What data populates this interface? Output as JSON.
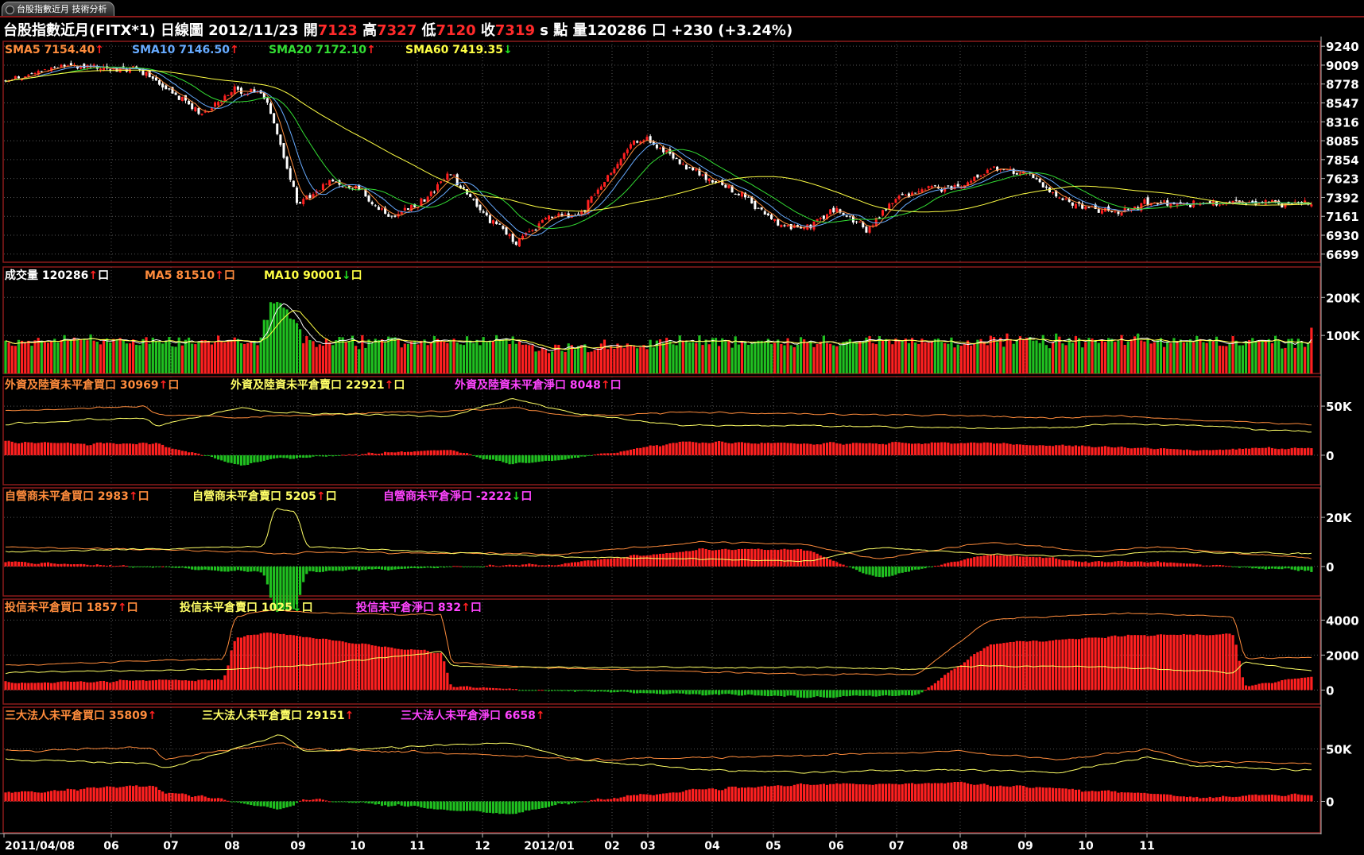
{
  "window": {
    "tab_label": "台股指數近月 技術分析"
  },
  "header": {
    "instrument": "台股指數近月(FITX*1)",
    "period": "日線圖",
    "date": "2012/11/23",
    "open_label": "開",
    "open": "7123",
    "high_label": "高",
    "high": "7327",
    "low_label": "低",
    "low": "7120",
    "close_label": "收",
    "close": "7319",
    "unit": "s 點",
    "volume_label": "量",
    "volume": "120286",
    "volume_unit": "口",
    "change": "+230 (+3.24%)"
  },
  "colors": {
    "up": "#ff2020",
    "down": "#20c020",
    "sma5": "#ff8c3c",
    "sma10": "#66aaff",
    "sma20": "#33dd33",
    "sma60": "#ffff44",
    "buy": "#ff8c3c",
    "sell": "#ffff66",
    "net": "#ff44ff",
    "frame": "#8b1a1a"
  },
  "x_axis": {
    "labels": [
      "2011/04/08",
      "06",
      "07",
      "08",
      "09",
      "10",
      "11",
      "12",
      "2012/01",
      "02",
      "03",
      "04",
      "05",
      "06",
      "07",
      "08",
      "09",
      "10",
      "11"
    ]
  },
  "chart_data": [
    {
      "type": "candlestick",
      "title": "price",
      "legend": [
        {
          "name": "SMA5",
          "value": "7154.40",
          "arrow": "up",
          "color": "sma5"
        },
        {
          "name": "SMA10",
          "value": "7146.50",
          "arrow": "up",
          "color": "sma10"
        },
        {
          "name": "SMA20",
          "value": "7172.10",
          "arrow": "up",
          "color": "sma20"
        },
        {
          "name": "SMA60",
          "value": "7419.35",
          "arrow": "down",
          "color": "sma60"
        }
      ],
      "yticks": [
        "9240",
        "9009",
        "8778",
        "8547",
        "8316",
        "8085",
        "7854",
        "7623",
        "7392",
        "7161",
        "6930",
        "6699"
      ],
      "ylim": [
        6600,
        9300
      ],
      "series_anchors": {
        "x_month_index": [
          0,
          0.5,
          1.5,
          2.5,
          3.0,
          3.5,
          4.0,
          4.5,
          5.0,
          5.5,
          6.0,
          6.5,
          7.0,
          7.5,
          8.0,
          8.5,
          9.0,
          9.5,
          10.0,
          10.5,
          11.0,
          11.5,
          12.0,
          12.5,
          13.0,
          13.5,
          14.0,
          14.5,
          15.0,
          15.5,
          16.0,
          16.5,
          17.0,
          17.5,
          18.0
        ],
        "close": [
          8800,
          9000,
          8950,
          8400,
          8700,
          8650,
          7300,
          7600,
          7500,
          7150,
          7300,
          7700,
          7200,
          6850,
          7150,
          7200,
          7700,
          8050,
          8100,
          7800,
          7600,
          7400,
          7100,
          7000,
          7250,
          7000,
          7400,
          7500,
          7500,
          7750,
          7700,
          7450,
          7250,
          7200,
          7319
        ]
      }
    },
    {
      "type": "bar",
      "title": "volume",
      "legend": [
        {
          "name": "成交量",
          "value": "120286",
          "arrow": "up",
          "suffix": "口",
          "color": "white"
        },
        {
          "name": "MA5",
          "value": "81510",
          "arrow": "up",
          "suffix": "口",
          "color": "sma5"
        },
        {
          "name": "MA10",
          "value": "90001",
          "arrow": "down",
          "suffix": "口",
          "color": "sma60"
        }
      ],
      "yticks": [
        "200K",
        "100K"
      ],
      "ylim": [
        0,
        280000
      ]
    },
    {
      "type": "line+bar",
      "title": "foreign",
      "legend": [
        {
          "name": "外資及陸資未平倉買口",
          "value": "30969",
          "arrow": "up",
          "suffix": "口",
          "color": "buy"
        },
        {
          "name": "外資及陸資未平倉賣口",
          "value": "22921",
          "arrow": "up",
          "suffix": "口",
          "color": "sell"
        },
        {
          "name": "外資及陸資未平倉淨口",
          "value": "8048",
          "arrow": "up",
          "suffix": "口",
          "color": "net"
        }
      ],
      "yticks": [
        "50K",
        "0"
      ],
      "ylim": [
        -30000,
        80000
      ]
    },
    {
      "type": "line+bar",
      "title": "dealers",
      "legend": [
        {
          "name": "自營商未平倉買口",
          "value": "2983",
          "arrow": "up",
          "suffix": "口",
          "color": "buy"
        },
        {
          "name": "自營商未平倉賣口",
          "value": "5205",
          "arrow": "up",
          "suffix": "口",
          "color": "sell"
        },
        {
          "name": "自營商未平倉淨口",
          "value": "-2222",
          "arrow": "down",
          "suffix": "口",
          "color": "net"
        }
      ],
      "yticks": [
        "20K",
        "0"
      ],
      "ylim": [
        -12000,
        32000
      ]
    },
    {
      "type": "line+bar",
      "title": "trust",
      "legend": [
        {
          "name": "投信未平倉買口",
          "value": "1857",
          "arrow": "up",
          "suffix": "口",
          "color": "buy"
        },
        {
          "name": "投信未平倉賣口",
          "value": "1025",
          "arrow": "down",
          "suffix": "口",
          "color": "sell"
        },
        {
          "name": "投信未平倉淨口",
          "value": "832",
          "arrow": "up",
          "suffix": "口",
          "color": "net"
        }
      ],
      "yticks": [
        "4000",
        "2000",
        "0"
      ],
      "ylim": [
        -800,
        5200
      ]
    },
    {
      "type": "line+bar",
      "title": "three",
      "legend": [
        {
          "name": "三大法人未平倉買口",
          "value": "35809",
          "arrow": "up",
          "color": "buy"
        },
        {
          "name": "三大法人未平倉賣口",
          "value": "29151",
          "arrow": "up",
          "color": "sell"
        },
        {
          "name": "三大法人未平倉淨口",
          "value": "6658",
          "arrow": "up",
          "color": "net"
        }
      ],
      "yticks": [
        "50K",
        "0"
      ],
      "ylim": [
        -30000,
        90000
      ]
    }
  ]
}
